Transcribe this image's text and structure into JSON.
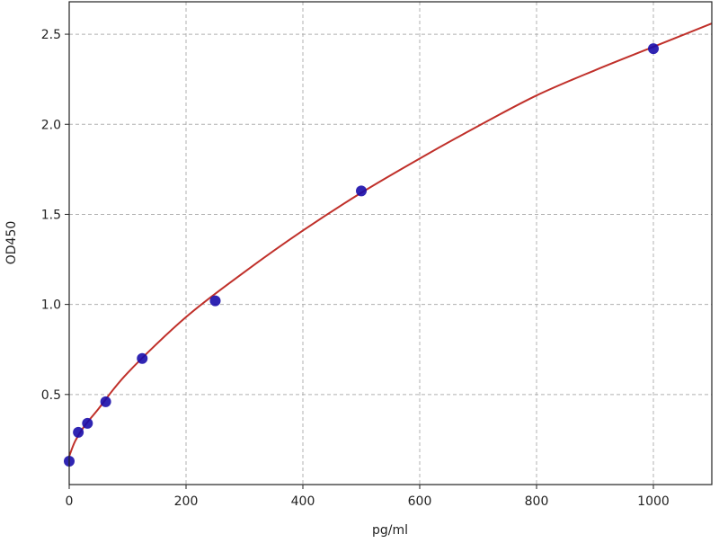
{
  "chart_data": {
    "type": "scatter",
    "title": "",
    "xlabel": "pg/ml",
    "ylabel": "OD450",
    "xlim": [
      0,
      1100
    ],
    "ylim": [
      0,
      2.68
    ],
    "xticks": [
      0,
      200,
      400,
      600,
      800,
      1000
    ],
    "yticks": [
      0.5,
      1.0,
      1.5,
      2.0,
      2.5
    ],
    "xtick_labels": [
      "0",
      "200",
      "400",
      "600",
      "800",
      "1000"
    ],
    "ytick_labels": [
      "0.5",
      "1.0",
      "1.5",
      "2.0",
      "2.5"
    ],
    "grid": true,
    "points": {
      "x": [
        0,
        15.6,
        31.25,
        62.5,
        125,
        250,
        500,
        1000
      ],
      "y": [
        0.13,
        0.29,
        0.34,
        0.46,
        0.7,
        1.02,
        1.63,
        2.42
      ],
      "color": "#1a0dab"
    },
    "fit_curve": {
      "x": [
        0,
        10,
        25,
        50,
        100,
        200,
        300,
        400,
        500,
        600,
        700,
        800,
        900,
        1000,
        1100
      ],
      "y": [
        0.157,
        0.24,
        0.32,
        0.42,
        0.62,
        0.93,
        1.18,
        1.41,
        1.62,
        1.81,
        1.99,
        2.16,
        2.3,
        2.43,
        2.56
      ],
      "color": "#c0302a"
    }
  }
}
